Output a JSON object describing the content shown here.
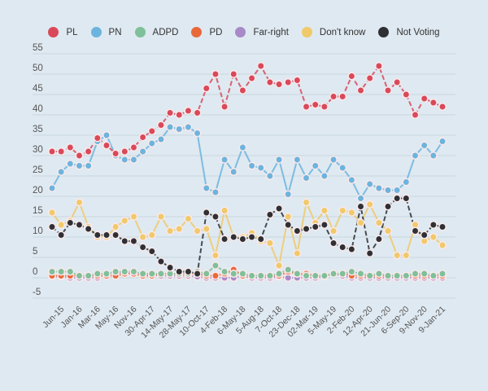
{
  "chart_data": {
    "type": "line",
    "title": "",
    "xlabel": "",
    "ylabel": "",
    "ylim": [
      -5,
      55
    ],
    "yticks": [
      55,
      50,
      45,
      40,
      35,
      30,
      25,
      20,
      15,
      10,
      5,
      0,
      -5
    ],
    "grid": true,
    "legend_position": "top-center",
    "categories": [
      "",
      "Jun-15",
      "",
      "Jan-16",
      "",
      "Mar-16",
      "",
      "May-16",
      "",
      "Nov-16",
      "",
      "30-Apr-17",
      "",
      "14-May-17",
      "",
      "28-May-17",
      "",
      "10-Oct-17",
      "",
      "4-Feb-18",
      "",
      "6-May-18",
      "",
      "5-Aug-18",
      "",
      "7-Oct-18",
      "",
      "23-Dec-18",
      "",
      "02-Mar-19",
      "",
      "5-May-19",
      "",
      "2-Feb-20",
      "",
      "12-Apr-20",
      "",
      "21-Jun-20",
      "",
      "6-Sep-20",
      "",
      "9-Nov-20",
      "",
      "9-Jan-21"
    ],
    "series": [
      {
        "name": "PL",
        "color": "#d9495a",
        "values": [
          31,
          31,
          32,
          30,
          31,
          34.3,
          32.5,
          30.5,
          31,
          32,
          34.5,
          36,
          37.5,
          40.5,
          40,
          41,
          40.5,
          46.5,
          50,
          42,
          50,
          46,
          49,
          52,
          48,
          47.5,
          48,
          48.5,
          42,
          42.5,
          42,
          44.5,
          44.5,
          49.5,
          46,
          49,
          52,
          46,
          48,
          45,
          40,
          44,
          43,
          42
        ]
      },
      {
        "name": "PN",
        "color": "#6cb4de",
        "values": [
          22,
          26,
          28,
          27.5,
          27.5,
          33.5,
          35,
          30,
          29,
          29,
          31,
          33,
          34,
          37,
          36.5,
          37,
          35.5,
          22,
          21,
          29,
          26,
          32,
          27.5,
          27,
          25,
          29,
          20.5,
          29,
          24.5,
          27.5,
          25,
          29,
          27,
          24,
          19.5,
          23,
          22,
          21.5,
          21.5,
          23.5,
          30,
          32.5,
          30,
          33.5
        ]
      },
      {
        "name": "ADPD",
        "color": "#7fbf9a",
        "values": [
          1.5,
          1.5,
          1.5,
          0.5,
          0.5,
          1,
          1,
          1.5,
          1.5,
          1.5,
          1,
          1,
          1,
          1,
          1,
          1,
          1.5,
          1,
          3,
          1.5,
          1,
          1,
          0.5,
          0.5,
          0.5,
          1,
          2,
          1,
          0.5,
          0.5,
          0.5,
          1,
          1,
          1.5,
          1,
          0.5,
          1,
          0.5,
          0.5,
          0.5,
          1,
          1,
          0.5,
          1
        ]
      },
      {
        "name": "PD",
        "color": "#e8683a",
        "values": [
          0.5,
          0.5,
          0.5,
          0.5,
          0.5,
          0.5,
          0.5,
          0.5,
          1,
          1,
          0.5,
          0.5,
          1,
          1,
          1,
          1,
          1,
          0.5,
          0.5,
          1,
          2,
          0.5,
          0.5,
          0.5,
          0.5,
          0.5,
          1.5,
          1,
          1,
          0.5,
          0.5,
          1,
          1,
          0.5,
          0.5,
          0.5,
          0.5,
          0.5,
          0.5,
          0.5,
          0.5,
          0.5,
          0.5,
          0.5
        ]
      },
      {
        "name": "Far-right",
        "color": "#a88ac8",
        "values": [
          0.3,
          0.3,
          0,
          0,
          0,
          0,
          1,
          1.2,
          1.2,
          1.2,
          1,
          0.8,
          0.5,
          0.5,
          0.5,
          0.5,
          0.3,
          0,
          0,
          0,
          0,
          0.5,
          0,
          0,
          0,
          0.3,
          0,
          0,
          0,
          0,
          0.3,
          1,
          0.5,
          0,
          0,
          0,
          0,
          0,
          0,
          0,
          0,
          0,
          0,
          0
        ]
      },
      {
        "name": "Don't know",
        "color": "#f0c96a",
        "values": [
          16,
          13,
          14,
          18.5,
          12.5,
          10,
          10,
          12.5,
          14,
          15,
          10,
          10.5,
          15,
          11.5,
          12,
          14.5,
          11.5,
          12,
          5.5,
          16.5,
          10,
          10,
          11,
          9,
          8.5,
          3,
          15,
          6,
          18.5,
          13.5,
          16.5,
          11.5,
          16.5,
          16,
          13.5,
          18,
          13.5,
          11.5,
          5.5,
          5.5,
          13,
          9,
          10,
          8
        ]
      },
      {
        "name": "Not Voting",
        "color": "#2e3034",
        "values": [
          12.5,
          10.5,
          13.5,
          13,
          12,
          10.5,
          10.5,
          10.5,
          9,
          9,
          7.5,
          6.5,
          4,
          2.5,
          1.5,
          1.5,
          1,
          16,
          15,
          9.5,
          10,
          9.5,
          10,
          9.5,
          15.5,
          17,
          13,
          11.5,
          12,
          12.5,
          13,
          8.5,
          7.5,
          7,
          17.5,
          6,
          9.5,
          17.5,
          19.5,
          19.5,
          11.5,
          10.5,
          13,
          12.5
        ]
      }
    ]
  }
}
